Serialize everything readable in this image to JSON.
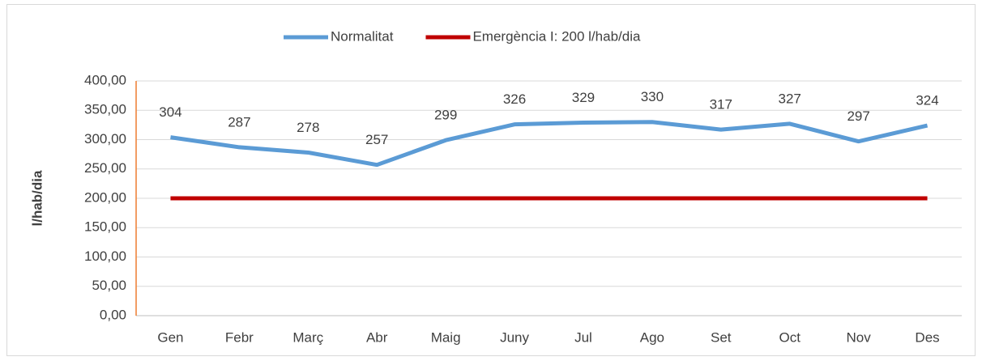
{
  "chart_data": {
    "type": "line",
    "ylabel": "l/hab/dia",
    "categories": [
      "Gen",
      "Febr",
      "Març",
      "Abr",
      "Maig",
      "Juny",
      "Jul",
      "Ago",
      "Set",
      "Oct",
      "Nov",
      "Des"
    ],
    "series": [
      {
        "name": "Normalitat",
        "color": "#5b9bd5",
        "values": [
          304,
          287,
          278,
          257,
          299,
          326,
          329,
          330,
          317,
          327,
          297,
          324
        ],
        "data_labels": true
      },
      {
        "name": "Emergència I: 200 l/hab/dia",
        "color": "#c00000",
        "values": [
          200,
          200,
          200,
          200,
          200,
          200,
          200,
          200,
          200,
          200,
          200,
          200
        ],
        "data_labels": false
      }
    ],
    "ylim": [
      0,
      400
    ],
    "yticks": [
      {
        "value": 0,
        "label": "0,00"
      },
      {
        "value": 50,
        "label": "50,00"
      },
      {
        "value": 100,
        "label": "100,00"
      },
      {
        "value": 150,
        "label": "150,00"
      },
      {
        "value": 200,
        "label": "200,00"
      },
      {
        "value": 250,
        "label": "250,00"
      },
      {
        "value": 300,
        "label": "300,00"
      },
      {
        "value": 350,
        "label": "350,00"
      },
      {
        "value": 400,
        "label": "400,00"
      }
    ],
    "grid": true,
    "legend": "top"
  }
}
